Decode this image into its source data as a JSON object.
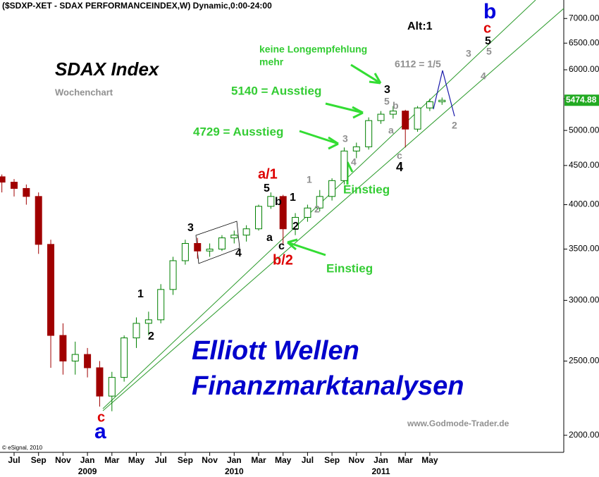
{
  "chart_data": {
    "type": "candlestick",
    "title": "($SDXP-XET - SDAX PERFORMANCEINDEX,W) Dynamic,0:00-24:00",
    "subtitle": "SDAX Index",
    "note": "Wochenchart",
    "x": [
      "2008-06",
      "2008-07",
      "2008-08",
      "2008-09",
      "2008-10",
      "2008-11",
      "2008-12",
      "2009-01",
      "2009-02",
      "2009-03",
      "2009-04",
      "2009-05",
      "2009-06",
      "2009-07",
      "2009-08",
      "2009-09",
      "2009-10",
      "2009-11",
      "2009-12",
      "2010-01",
      "2010-02",
      "2010-03",
      "2010-04",
      "2010-05",
      "2010-06",
      "2010-07",
      "2010-08",
      "2010-09",
      "2010-10",
      "2010-11",
      "2010-12",
      "2011-01",
      "2011-02",
      "2011-03",
      "2011-04",
      "2011-05",
      "2011-06"
    ],
    "open": [
      4350,
      4280,
      4200,
      4100,
      3550,
      2700,
      2500,
      2550,
      2450,
      2250,
      2380,
      2680,
      2800,
      2830,
      3100,
      3380,
      3560,
      3480,
      3500,
      3620,
      3650,
      3720,
      3980,
      4100,
      3720,
      3850,
      3960,
      4100,
      4300,
      4700,
      4760,
      5150,
      5250,
      5300,
      5020,
      5350,
      5450
    ],
    "high": [
      4380,
      4320,
      4250,
      4150,
      3600,
      2800,
      2650,
      2600,
      2500,
      2420,
      2700,
      2850,
      2900,
      3150,
      3420,
      3600,
      3620,
      3560,
      3650,
      3700,
      3760,
      4000,
      4150,
      4120,
      3900,
      4000,
      4180,
      4330,
      4750,
      4820,
      5200,
      5300,
      5380,
      5320,
      5380,
      5500,
      5520
    ],
    "low": [
      4150,
      4100,
      4000,
      3450,
      2450,
      2400,
      2400,
      2380,
      2180,
      2150,
      2350,
      2600,
      2700,
      2800,
      3050,
      3340,
      3400,
      3420,
      3480,
      3560,
      3580,
      3700,
      3950,
      3550,
      3650,
      3800,
      3920,
      4050,
      4250,
      4600,
      4720,
      5100,
      5180,
      4750,
      4980,
      5300,
      5400
    ],
    "close": [
      4280,
      4200,
      4100,
      3550,
      2700,
      2500,
      2550,
      2450,
      2250,
      2380,
      2680,
      2800,
      2830,
      3100,
      3380,
      3560,
      3480,
      3500,
      3620,
      3650,
      3720,
      3980,
      4100,
      3720,
      3850,
      3960,
      4100,
      4300,
      4700,
      4760,
      5150,
      5250,
      5300,
      5020,
      5350,
      5450,
      5475
    ],
    "up_color": "#008000",
    "down_color": "#a00000",
    "log_scale": true,
    "ylim": [
      1900,
      7400
    ],
    "yticks": [
      {
        "value": 2000,
        "label": "2000.00"
      },
      {
        "value": 2500,
        "label": "2500.00"
      },
      {
        "value": 3000,
        "label": "3000.00"
      },
      {
        "value": 3500,
        "label": "3500.00"
      },
      {
        "value": 4000,
        "label": "4000.00"
      },
      {
        "value": 4500,
        "label": "4500.00"
      },
      {
        "value": 5000,
        "label": "5000.00"
      },
      {
        "value": 5500,
        "label": "5500.00"
      },
      {
        "value": 6000,
        "label": "6000.00"
      },
      {
        "value": 6500,
        "label": "6500.00"
      },
      {
        "value": 7000,
        "label": "7000.00"
      }
    ],
    "xticks": [
      {
        "value": "2008-07",
        "label": "Jul"
      },
      {
        "value": "2008-09",
        "label": "Sep"
      },
      {
        "value": "2008-11",
        "label": "Nov"
      },
      {
        "value": "2009-01",
        "label": "Jan"
      },
      {
        "value": "2009-03",
        "label": "Mar"
      },
      {
        "value": "2009-05",
        "label": "May"
      },
      {
        "value": "2009-07",
        "label": "Jul"
      },
      {
        "value": "2009-09",
        "label": "Sep"
      },
      {
        "value": "2009-11",
        "label": "Nov"
      },
      {
        "value": "2010-01",
        "label": "Jan"
      },
      {
        "value": "2010-03",
        "label": "Mar"
      },
      {
        "value": "2010-05",
        "label": "May"
      },
      {
        "value": "2010-07",
        "label": "Jul"
      },
      {
        "value": "2010-09",
        "label": "Sep"
      },
      {
        "value": "2010-11",
        "label": "Nov"
      },
      {
        "value": "2011-01",
        "label": "Jan"
      },
      {
        "value": "2011-03",
        "label": "Mar"
      },
      {
        "value": "2011-05",
        "label": "May"
      }
    ],
    "year_labels": [
      {
        "value": "2009-01",
        "label": "2009"
      },
      {
        "value": "2010-01",
        "label": "2010"
      },
      {
        "value": "2011-01",
        "label": "2011"
      }
    ],
    "last_price": {
      "value": 5474.88,
      "label": "5474.88"
    },
    "annotations": [
      {
        "text": "Alt:1",
        "color": "#000000"
      },
      {
        "text": "keine Longempfehlung",
        "color": "#33cc33"
      },
      {
        "text": "mehr",
        "color": "#33cc33"
      },
      {
        "text": "6112 = 1/5",
        "color": "#909090"
      },
      {
        "text": "5140 = Ausstieg",
        "color": "#33cc33"
      },
      {
        "text": "4729 = Ausstieg",
        "color": "#33cc33"
      },
      {
        "text": "Einstieg",
        "color": "#33cc33"
      },
      {
        "text": "Einstieg",
        "color": "#33cc33"
      },
      {
        "text": "Elliott Wellen",
        "color": "#0000cc"
      },
      {
        "text": "Finanzmarktanalysen",
        "color": "#0000cc"
      },
      {
        "text": "www.Godmode-Trader.de",
        "color": "#909090"
      },
      {
        "text": "© eSignal, 2010",
        "color": "#000000"
      },
      {
        "text": "1",
        "color": "#000000"
      },
      {
        "text": "2",
        "color": "#000000"
      },
      {
        "text": "3",
        "color": "#000000"
      },
      {
        "text": "4",
        "color": "#000000"
      },
      {
        "text": "5",
        "color": "#000000"
      },
      {
        "text": "b",
        "color": "#000000"
      },
      {
        "text": "1",
        "color": "#000000"
      },
      {
        "text": "a",
        "color": "#000000"
      },
      {
        "text": "c",
        "color": "#000000"
      },
      {
        "text": "2",
        "color": "#000000"
      },
      {
        "text": "3",
        "color": "#000000"
      },
      {
        "text": "4",
        "color": "#000000"
      },
      {
        "text": "a/1",
        "color": "#dd0000"
      },
      {
        "text": "b/2",
        "color": "#dd0000"
      },
      {
        "text": "c",
        "color": "#dd0000"
      },
      {
        "text": "a",
        "color": "#0000dd"
      },
      {
        "text": "b",
        "color": "#0000dd"
      },
      {
        "text": "c",
        "color": "#dd0000"
      },
      {
        "text": "5",
        "color": "#000000"
      },
      {
        "text": "1",
        "color": "#909090"
      },
      {
        "text": "2",
        "color": "#909090"
      },
      {
        "text": "3",
        "color": "#909090"
      },
      {
        "text": "4",
        "color": "#909090"
      },
      {
        "text": "5",
        "color": "#909090"
      },
      {
        "text": "b",
        "color": "#909090"
      },
      {
        "text": "a",
        "color": "#909090"
      },
      {
        "text": "c",
        "color": "#909090"
      },
      {
        "text": "3",
        "color": "#909090"
      },
      {
        "text": "5",
        "color": "#909090"
      },
      {
        "text": "4",
        "color": "#909090"
      },
      {
        "text": "2",
        "color": "#909090"
      }
    ]
  }
}
